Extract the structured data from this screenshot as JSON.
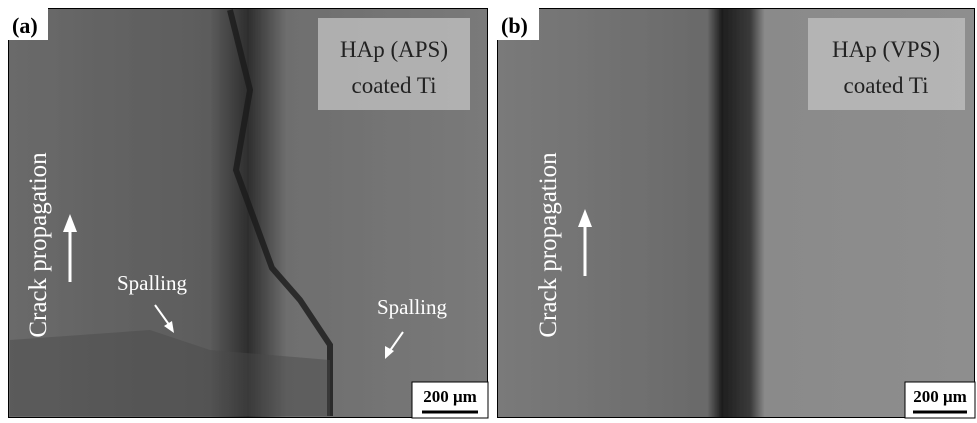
{
  "panels": [
    {
      "label": "(a)",
      "caption": [
        "HAp (APS)",
        "coated Ti"
      ],
      "direction_label": "Crack propagation",
      "annotations": [
        "Spalling",
        "Spalling"
      ],
      "scale_bar": "200 μm"
    },
    {
      "label": "(b)",
      "caption": [
        "HAp (VPS)",
        "coated Ti"
      ],
      "direction_label": "Crack propagation",
      "scale_bar": "200 μm"
    }
  ]
}
